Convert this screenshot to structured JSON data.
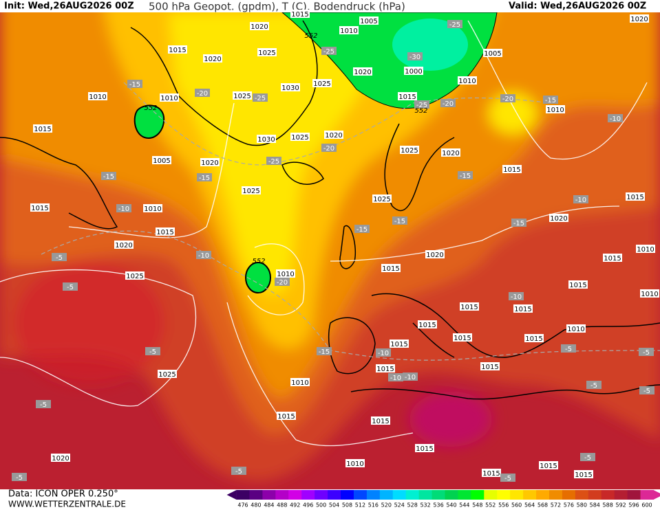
{
  "header": {
    "init": "Init: Wed,26AUG2026 00Z",
    "title": "500 hPa Geopot. (gpdm), T (C), Bodendruck (hPa)",
    "valid": "Valid: Wed,26AUG2026 00Z"
  },
  "footer": {
    "source": "Data: ICON OPER 0.250°",
    "site": "WWW.WETTERZENTRALE.DE"
  },
  "legend": {
    "values": [
      476,
      480,
      484,
      488,
      492,
      496,
      500,
      504,
      508,
      512,
      516,
      520,
      524,
      528,
      532,
      536,
      540,
      544,
      548,
      552,
      556,
      560,
      564,
      568,
      572,
      576,
      580,
      584,
      588,
      592,
      596,
      600
    ],
    "colors": [
      "#3c0064",
      "#5a0082",
      "#8c00aa",
      "#b400c8",
      "#d200e6",
      "#a000ff",
      "#6e00ff",
      "#3c00ff",
      "#0000ff",
      "#0046ff",
      "#0082ff",
      "#00b4ff",
      "#00dcff",
      "#00f0d2",
      "#00e6a0",
      "#00dc78",
      "#00d250",
      "#00e632",
      "#00ff00",
      "#e6ff00",
      "#ffff00",
      "#ffe600",
      "#ffc800",
      "#ffaa00",
      "#f08c00",
      "#e66e00",
      "#dc5014",
      "#d23c1e",
      "#c82828",
      "#b41e32",
      "#a0143c",
      "#dc2896"
    ]
  },
  "map": {
    "pressure_labels": [
      "1015",
      "1020",
      "1010",
      "1005",
      "1015",
      "1020",
      "1025",
      "1005",
      "1020",
      "1000",
      "1010",
      "1030",
      "1025",
      "1025",
      "1010",
      "1010",
      "1015",
      "1010",
      "1015",
      "1030",
      "1025",
      "1020",
      "1025",
      "1020",
      "1005",
      "1020",
      "1015",
      "1025",
      "1025",
      "1015",
      "1010",
      "1015",
      "1015",
      "1020",
      "1020",
      "1020",
      "1015",
      "1015",
      "1010",
      "1025",
      "1015",
      "1015",
      "1015",
      "1015",
      "1015",
      "1015",
      "1010",
      "1015",
      "1015",
      "1015",
      "1025",
      "1010",
      "1015",
      "1015",
      "1015",
      "1020",
      "1010",
      "1015",
      "1015",
      "1015",
      "1020",
      "1010",
      "1010"
    ],
    "temperature_labels": [
      "-15",
      "-20",
      "-25",
      "-25",
      "-30",
      "-25",
      "-25",
      "-20",
      "-20",
      "-15",
      "-10",
      "-20",
      "-25",
      "-15",
      "-15",
      "-10",
      "-15",
      "-15",
      "-15",
      "-15",
      "-10",
      "-10",
      "-5",
      "-20",
      "-5",
      "-10",
      "-5",
      "-15",
      "-10",
      "-10",
      "-10",
      "-5",
      "-5",
      "-5",
      "-5",
      "-5",
      "-5",
      "-5",
      "-5",
      "-5"
    ],
    "geopotential_labels": [
      "552",
      "552",
      "552",
      "552"
    ]
  }
}
